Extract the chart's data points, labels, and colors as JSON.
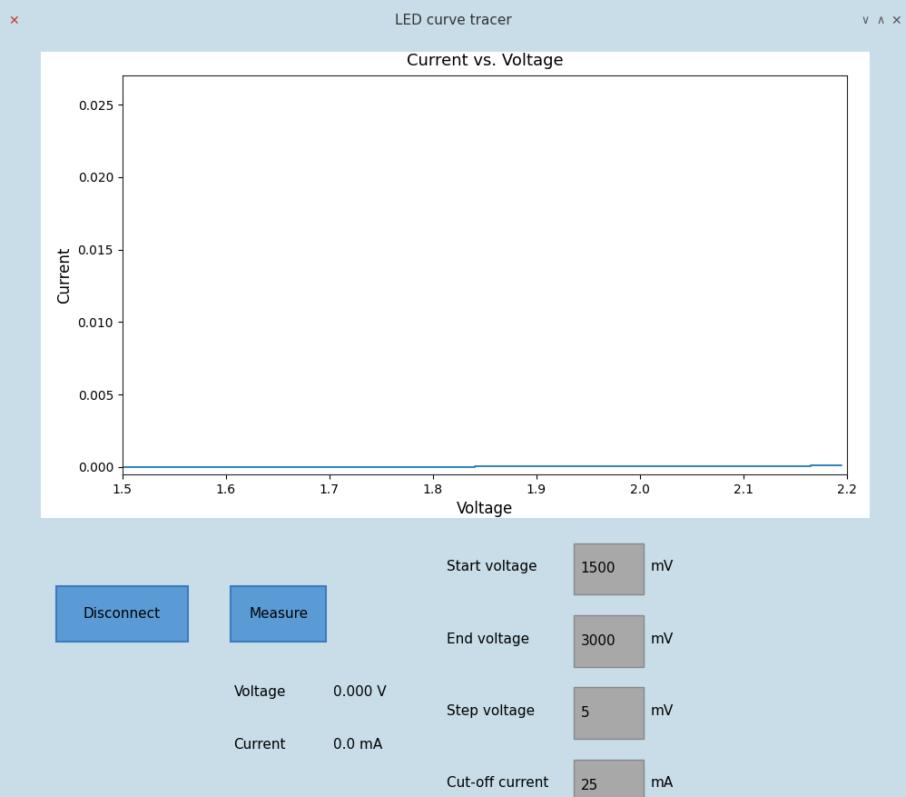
{
  "title": "Current vs. Voltage",
  "xlabel": "Voltage",
  "ylabel": "Current",
  "xlim": [
    1.5,
    2.2
  ],
  "ylim": [
    -0.0005,
    0.027
  ],
  "line_color": "#1f77b4",
  "fig_bg": "#c8dde8",
  "panel_bg": "#ffffff",
  "button_color": "#5b9bd5",
  "input_bg": "#a8a8a8",
  "input_border": "#888888",
  "titlebar_bg": "#e0e8f0",
  "titlebar_text": "LED curve tracer",
  "xticks": [
    1.5,
    1.6,
    1.7,
    1.8,
    1.9,
    2.0,
    2.1,
    2.2
  ],
  "yticks": [
    0.0,
    0.005,
    0.01,
    0.015,
    0.02,
    0.025
  ]
}
